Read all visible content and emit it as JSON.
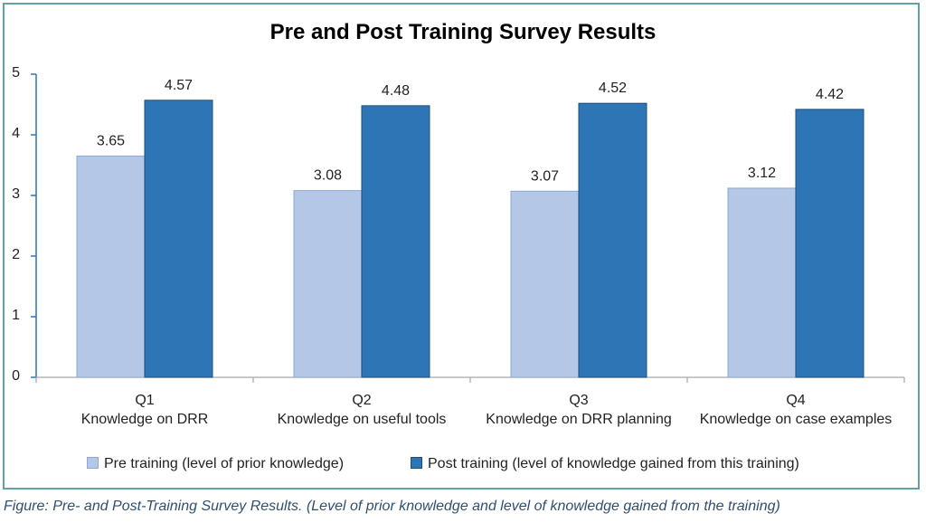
{
  "chart_data": {
    "type": "bar",
    "title": "Pre and Post Training Survey Results",
    "categories": [
      "Q1",
      "Q2",
      "Q3",
      "Q4"
    ],
    "category_descriptions": [
      "Knowledge on DRR",
      "Knowledge on useful tools",
      "Knowledge on DRR planning",
      "Knowledge on case examples"
    ],
    "series": [
      {
        "name": "Pre training (level of prior knowledge)",
        "values": [
          3.65,
          3.08,
          3.07,
          3.12
        ],
        "color": "#b4c7e7"
      },
      {
        "name": "Post training (level of knowledge gained from this training)",
        "values": [
          4.57,
          4.48,
          4.52,
          4.42
        ],
        "color": "#2e75b6"
      }
    ],
    "value_labels": [
      [
        "3.65",
        "3.08",
        "3.07",
        "3.12"
      ],
      [
        "4.57",
        "4.48",
        "4.52",
        "4.42"
      ]
    ],
    "ylim": [
      0,
      5
    ],
    "yticks": [
      "0",
      "1",
      "2",
      "3",
      "4",
      "5"
    ],
    "grid": false,
    "legend": "bottom"
  },
  "caption": "Figure: Pre- and Post-Training Survey Results. (Level of prior knowledge and level of knowledge gained from the training)"
}
